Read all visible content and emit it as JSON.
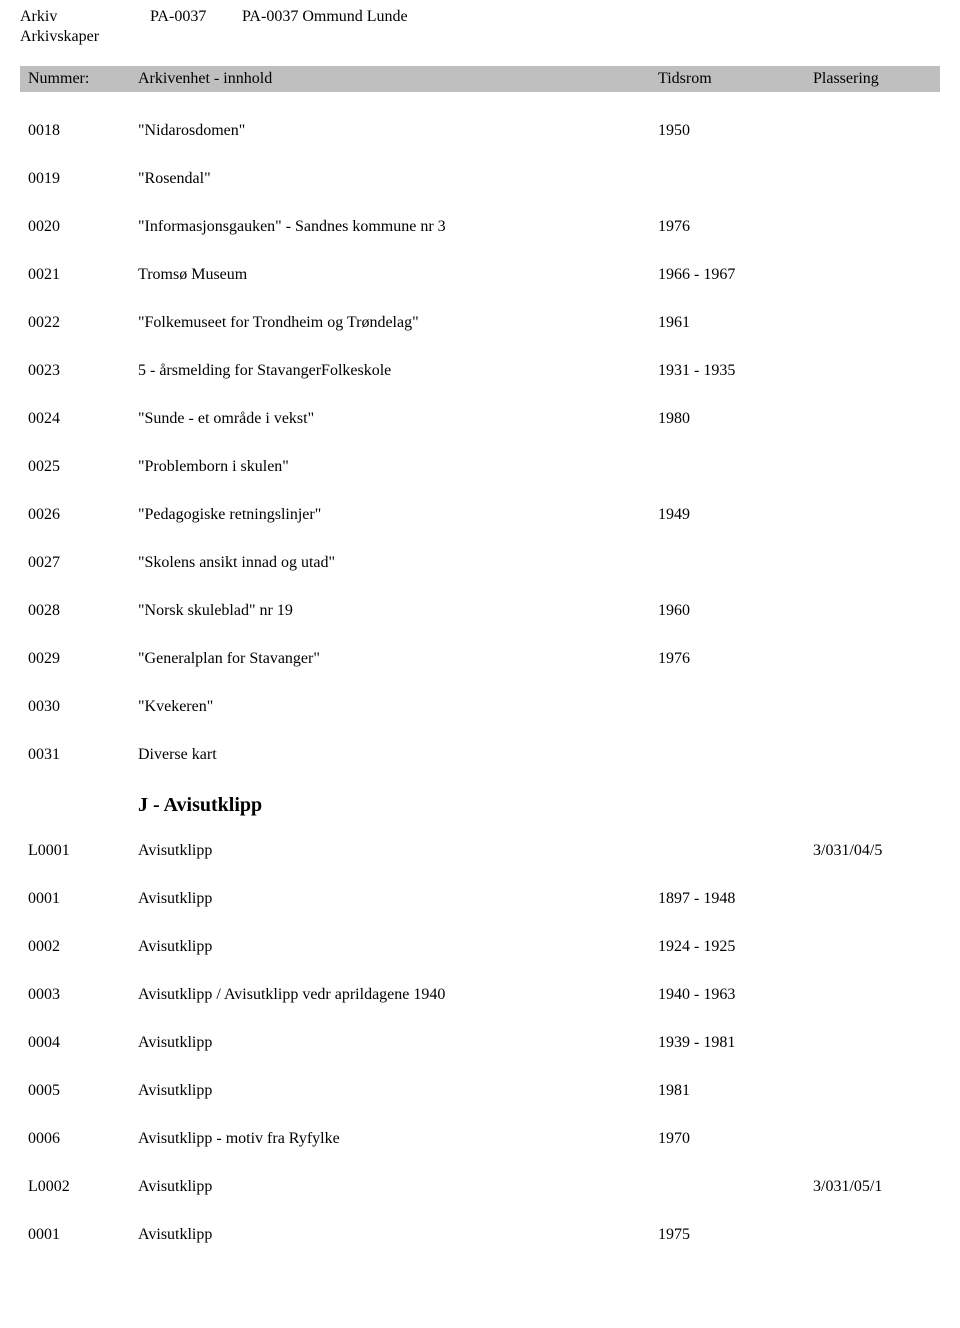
{
  "header": {
    "arkiv_label": "Arkiv",
    "arkiv_code": "PA-0037",
    "arkiv_title": "PA-0037 Ommund Lunde",
    "arkivskaper_label": "Arkivskaper"
  },
  "columns": {
    "nummer": "Nummer:",
    "innhold": "Arkivenhet - innhold",
    "tidsrom": "Tidsrom",
    "plassering": "Plassering"
  },
  "rows": [
    {
      "num": "0018",
      "text": "\"Nidarosdomen\"",
      "date": "1950",
      "place": ""
    },
    {
      "num": "0019",
      "text": "\"Rosendal\"",
      "date": "",
      "place": ""
    },
    {
      "num": "0020",
      "text": "\"Informasjonsgauken\" - Sandnes kommune nr 3",
      "date": "1976",
      "place": ""
    },
    {
      "num": "0021",
      "text": "Tromsø Museum",
      "date": "1966 - 1967",
      "place": ""
    },
    {
      "num": "0022",
      "text": "\"Folkemuseet for Trondheim og Trøndelag\"",
      "date": "1961",
      "place": ""
    },
    {
      "num": "0023",
      "text": "5 - årsmelding for StavangerFolkeskole",
      "date": "1931 - 1935",
      "place": ""
    },
    {
      "num": "0024",
      "text": "\"Sunde - et område i vekst\"",
      "date": "1980",
      "place": ""
    },
    {
      "num": "0025",
      "text": "\"Problemborn i skulen\"",
      "date": "",
      "place": ""
    },
    {
      "num": "0026",
      "text": "\"Pedagogiske retningslinjer\"",
      "date": "1949",
      "place": ""
    },
    {
      "num": "0027",
      "text": "\"Skolens ansikt innad og utad\"",
      "date": "",
      "place": ""
    },
    {
      "num": "0028",
      "text": "\"Norsk skuleblad\" nr 19",
      "date": "1960",
      "place": ""
    },
    {
      "num": "0029",
      "text": "\"Generalplan for Stavanger\"",
      "date": "1976",
      "place": ""
    },
    {
      "num": "0030",
      "text": "\"Kvekeren\"",
      "date": "",
      "place": ""
    },
    {
      "num": "0031",
      "text": "Diverse kart",
      "date": "",
      "place": ""
    }
  ],
  "section": {
    "title": "J - Avisutklipp"
  },
  "rows2": [
    {
      "num": "L0001",
      "text": "Avisutklipp",
      "date": "",
      "place": "3/031/04/5"
    },
    {
      "num": "0001",
      "text": "Avisutklipp",
      "date": "1897 - 1948",
      "place": ""
    },
    {
      "num": "0002",
      "text": "Avisutklipp",
      "date": "1924 - 1925",
      "place": ""
    },
    {
      "num": "0003",
      "text": "Avisutklipp / Avisutklipp vedr aprildagene 1940",
      "date": "1940 - 1963",
      "place": ""
    },
    {
      "num": "0004",
      "text": "Avisutklipp",
      "date": "1939 - 1981",
      "place": ""
    },
    {
      "num": "0005",
      "text": "Avisutklipp",
      "date": "1981",
      "place": ""
    },
    {
      "num": "0006",
      "text": "Avisutklipp - motiv fra Ryfylke",
      "date": "1970",
      "place": ""
    },
    {
      "num": "L0002",
      "text": "Avisutklipp",
      "date": "",
      "place": "3/031/05/1"
    },
    {
      "num": "0001",
      "text": "Avisutklipp",
      "date": "1975",
      "place": ""
    }
  ]
}
